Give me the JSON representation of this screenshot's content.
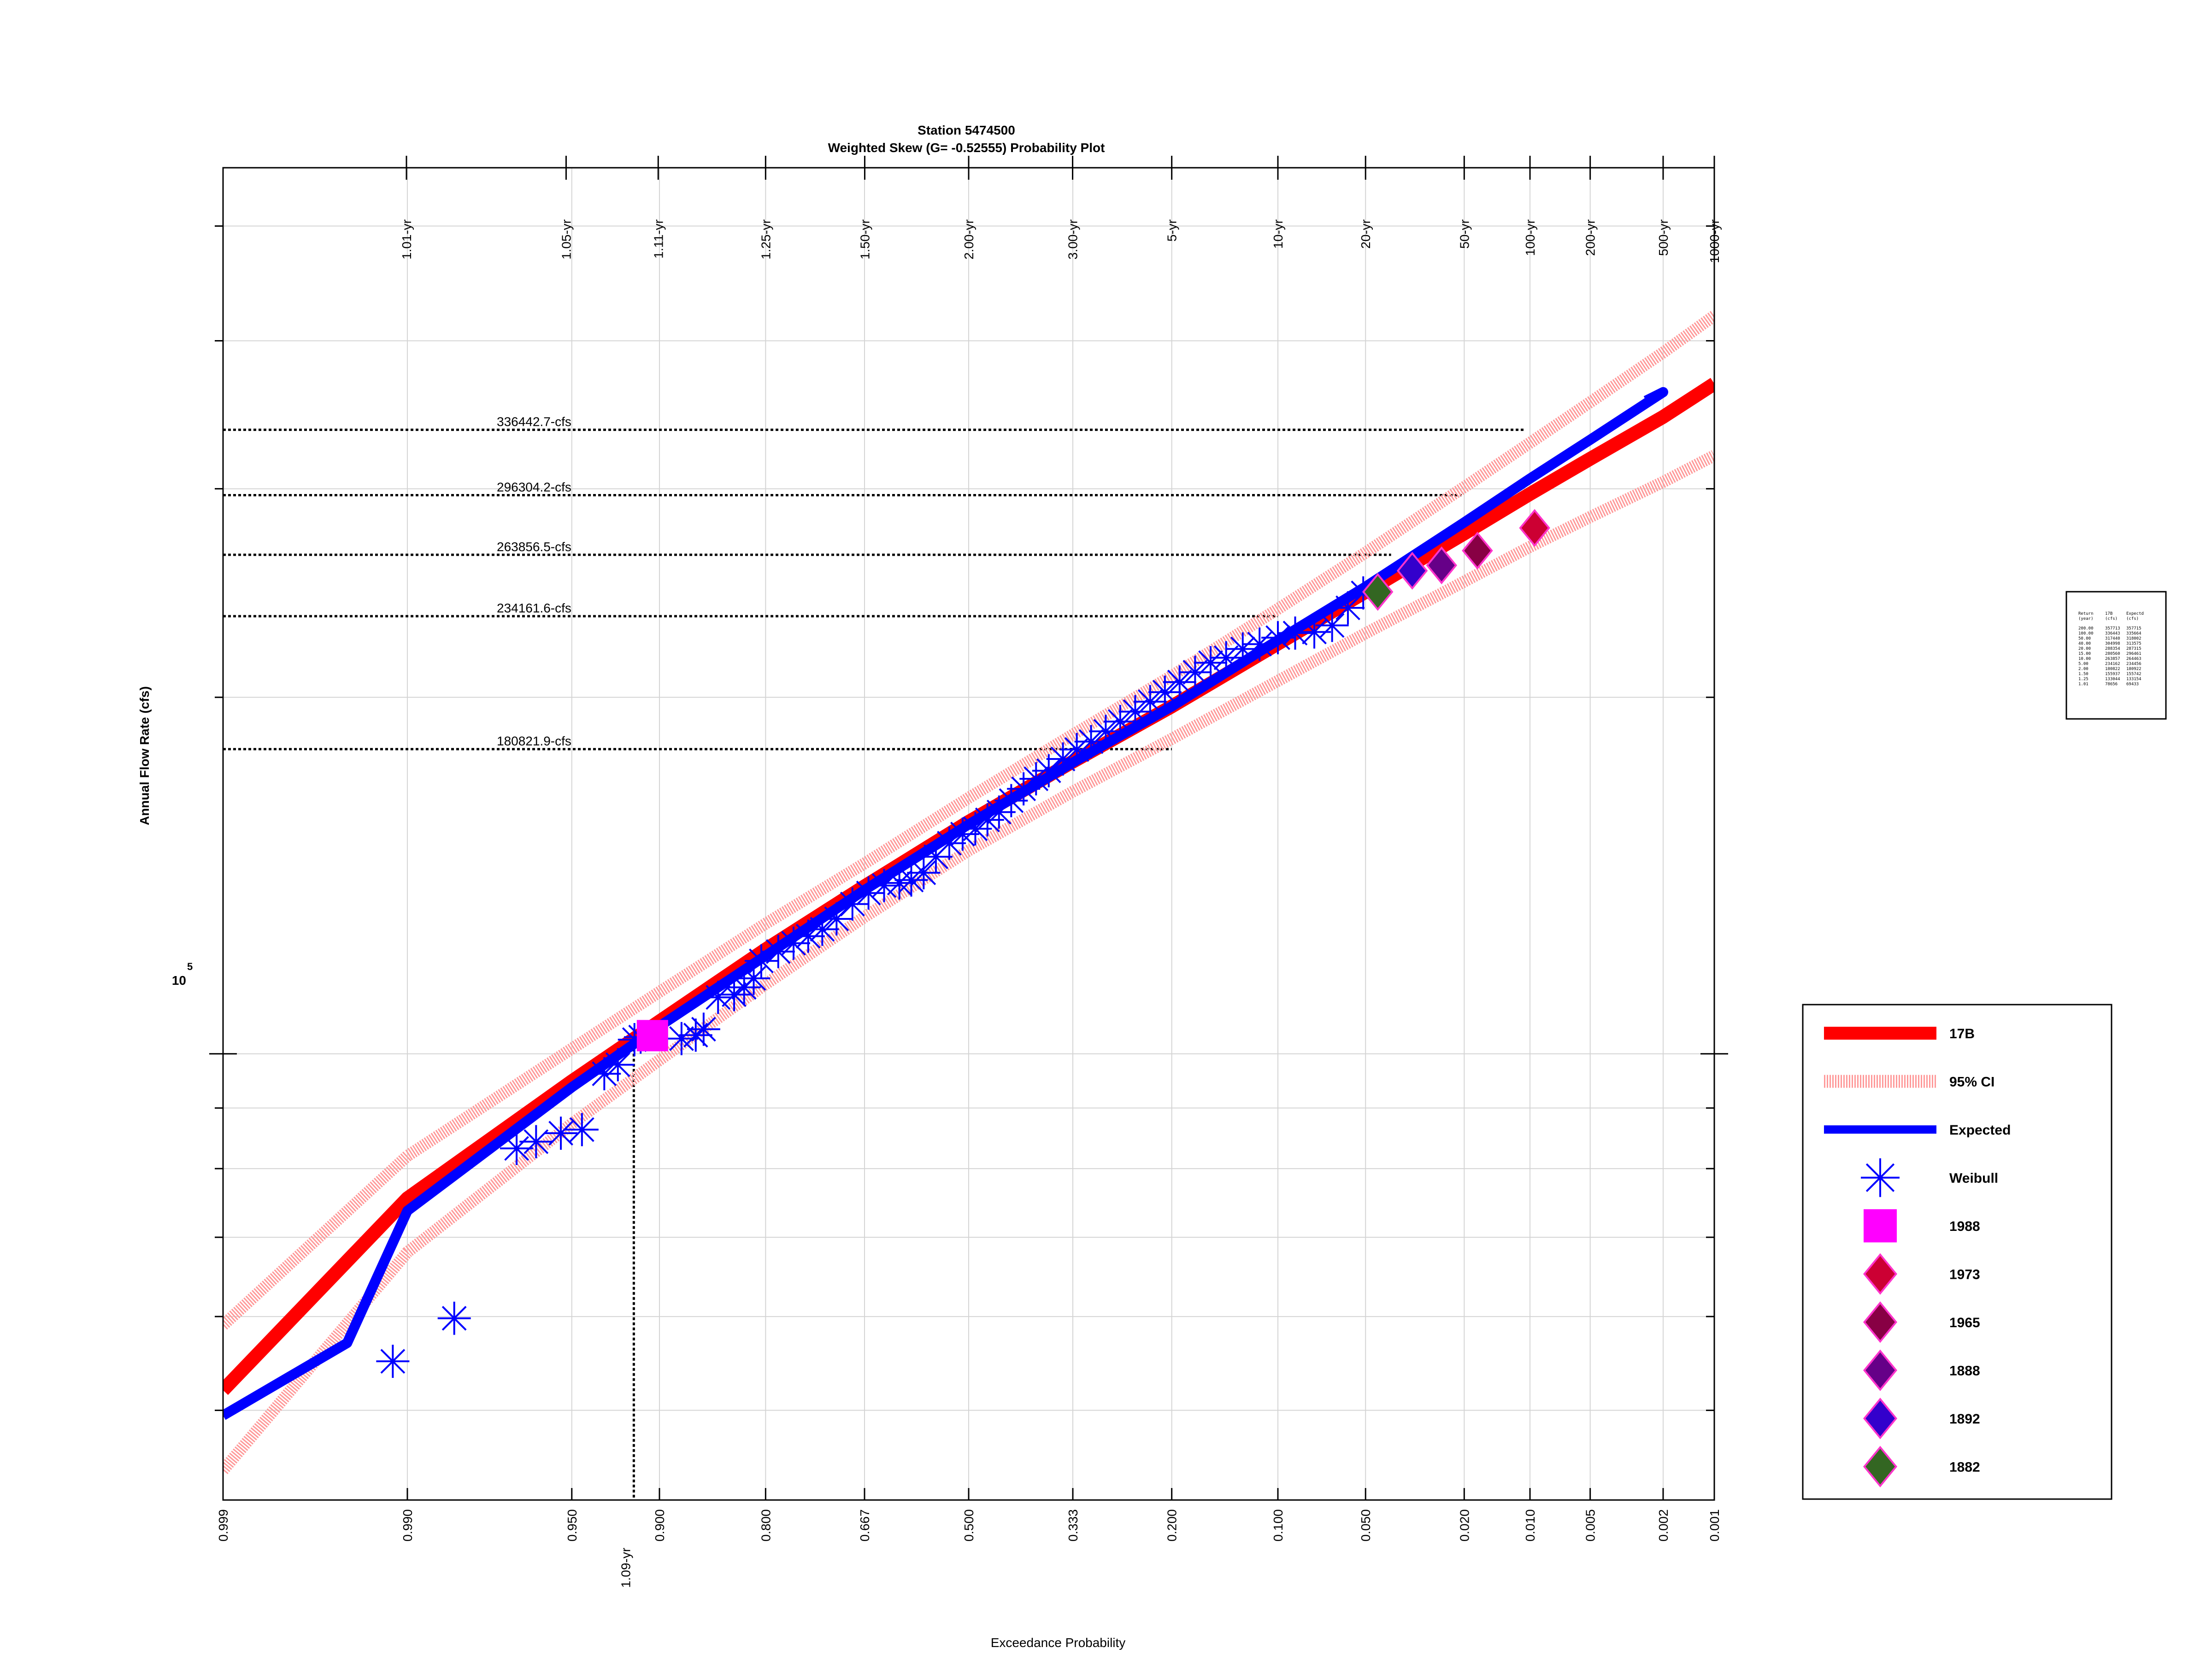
{
  "chart_data": {
    "type": "scatter",
    "title_line1": "Station 5474500",
    "title_line2": "Weighted Skew (G= -0.52555) Probability Plot",
    "xlabel": "Exceedance Probability",
    "ylabel": "Annual Flow Rate (cfs)",
    "x_scale": "normal-probability",
    "y_scale": "log",
    "xlim": [
      0.999,
      0.001
    ],
    "ylim": [
      42000,
      560000
    ],
    "grid": true,
    "y_major_label": {
      "base": "10",
      "exp": "5"
    },
    "x_ticks": [
      {
        "p": 0.999,
        "label": "0.999"
      },
      {
        "p": 0.99,
        "label": "0.990"
      },
      {
        "p": 0.95,
        "label": "0.950"
      },
      {
        "p": 0.9,
        "label": "0.900"
      },
      {
        "p": 0.8,
        "label": "0.800"
      },
      {
        "p": 0.667,
        "label": "0.667"
      },
      {
        "p": 0.5,
        "label": "0.500"
      },
      {
        "p": 0.333,
        "label": "0.333"
      },
      {
        "p": 0.2,
        "label": "0.200"
      },
      {
        "p": 0.1,
        "label": "0.100"
      },
      {
        "p": 0.05,
        "label": "0.050"
      },
      {
        "p": 0.02,
        "label": "0.020"
      },
      {
        "p": 0.01,
        "label": "0.010"
      },
      {
        "p": 0.005,
        "label": "0.005"
      },
      {
        "p": 0.002,
        "label": "0.002"
      },
      {
        "p": 0.001,
        "label": "0.001"
      }
    ],
    "return_period_ticks": [
      {
        "p": 0.990099,
        "label": "1.01-yr"
      },
      {
        "p": 0.952381,
        "label": "1.05-yr"
      },
      {
        "p": 0.9009,
        "label": "1.11-yr"
      },
      {
        "p": 0.8,
        "label": "1.25-yr"
      },
      {
        "p": 0.6667,
        "label": "1.50-yr"
      },
      {
        "p": 0.5,
        "label": "2.00-yr"
      },
      {
        "p": 0.3333,
        "label": "3.00-yr"
      },
      {
        "p": 0.2,
        "label": "5-yr"
      },
      {
        "p": 0.1,
        "label": "10-yr"
      },
      {
        "p": 0.05,
        "label": "20-yr"
      },
      {
        "p": 0.02,
        "label": "50-yr"
      },
      {
        "p": 0.01,
        "label": "100-yr"
      },
      {
        "p": 0.005,
        "label": "200-yr"
      },
      {
        "p": 0.002,
        "label": "500-yr"
      },
      {
        "p": 0.001,
        "label": "1000-yr"
      }
    ],
    "flow_annotations": [
      {
        "q": 336442.7,
        "p_end": 0.0105,
        "label": "336442.7-cfs"
      },
      {
        "q": 296304.2,
        "p_end": 0.0205,
        "label": "296304.2-cfs"
      },
      {
        "q": 263856.5,
        "p_end": 0.04,
        "label": "263856.5-cfs"
      },
      {
        "q": 234161.6,
        "p_end": 0.1,
        "label": "234161.6-cfs"
      },
      {
        "q": 180821.9,
        "p_end": 0.2,
        "label": "180821.9-cfs"
      }
    ],
    "vertical_annotation": {
      "p": 0.9174,
      "q": 101000,
      "label": "1.09-yr"
    },
    "series": [
      {
        "name": "17B",
        "color": "#ff0000",
        "kind": "line",
        "points": [
          [
            0.999,
            52000
          ],
          [
            0.99,
            75500
          ],
          [
            0.95,
            94800
          ],
          [
            0.9,
            106500
          ],
          [
            0.8,
            122500
          ],
          [
            0.667,
            138500
          ],
          [
            0.5,
            157000
          ],
          [
            0.333,
            176500
          ],
          [
            0.2,
            196500
          ],
          [
            0.1,
            222000
          ],
          [
            0.05,
            245500
          ],
          [
            0.02,
            275000
          ],
          [
            0.01,
            297000
          ],
          [
            0.005,
            318000
          ],
          [
            0.002,
            345000
          ],
          [
            0.001,
            368000
          ]
        ]
      },
      {
        "name": "95% CI",
        "color": "#ff9999",
        "kind": "band",
        "role": "upper",
        "points": [
          [
            0.999,
            59000
          ],
          [
            0.99,
            82000
          ],
          [
            0.95,
            101000
          ],
          [
            0.9,
            112800
          ],
          [
            0.8,
            128800
          ],
          [
            0.667,
            144800
          ],
          [
            0.5,
            164500
          ],
          [
            0.333,
            186000
          ],
          [
            0.2,
            208500
          ],
          [
            0.1,
            237500
          ],
          [
            0.05,
            265000
          ],
          [
            0.02,
            301000
          ],
          [
            0.01,
            328000
          ],
          [
            0.005,
            355000
          ],
          [
            0.002,
            391000
          ],
          [
            0.001,
            420000
          ]
        ]
      },
      {
        "name": "",
        "color": "#ff9999",
        "kind": "band",
        "role": "lower",
        "points": [
          [
            0.999,
            44500
          ],
          [
            0.99,
            68000
          ],
          [
            0.95,
            87300
          ],
          [
            0.9,
            98800
          ],
          [
            0.8,
            114500
          ],
          [
            0.667,
            130500
          ],
          [
            0.5,
            148500
          ],
          [
            0.333,
            166500
          ],
          [
            0.2,
            184500
          ],
          [
            0.1,
            206500
          ],
          [
            0.05,
            226500
          ],
          [
            0.02,
            250500
          ],
          [
            0.01,
            268000
          ],
          [
            0.005,
            284000
          ],
          [
            0.002,
            304000
          ],
          [
            0.001,
            320000
          ]
        ]
      },
      {
        "name": "Expected",
        "color": "#0000ff",
        "kind": "line",
        "points": [
          [
            0.999,
            49500
          ],
          [
            0.995,
            57000
          ],
          [
            0.99,
            73700
          ],
          [
            0.95,
            93700
          ],
          [
            0.9,
            105500
          ],
          [
            0.8,
            121000
          ],
          [
            0.667,
            137500
          ],
          [
            0.5,
            156200
          ],
          [
            0.333,
            176200
          ],
          [
            0.2,
            196500
          ],
          [
            0.1,
            223500
          ],
          [
            0.05,
            248000
          ],
          [
            0.02,
            281000
          ],
          [
            0.01,
            306000
          ],
          [
            0.005,
            330000
          ],
          [
            0.002,
            362000
          ],
          [
            0.0025,
            356000
          ]
        ]
      },
      {
        "name": "Weibull",
        "color": "#0000ff",
        "kind": "markers",
        "marker": "asterisk",
        "points": [
          [
            0.9915,
            55000
          ],
          [
            0.9835,
            59800
          ],
          [
            0.9695,
            83200
          ],
          [
            0.9635,
            84300
          ],
          [
            0.9545,
            85700
          ],
          [
            0.9455,
            86300
          ],
          [
            0.9345,
            96200
          ],
          [
            0.927,
            97900
          ],
          [
            0.917,
            102800
          ],
          [
            0.913,
            103300
          ],
          [
            0.883,
            103000
          ],
          [
            0.871,
            103700
          ],
          [
            0.864,
            104900
          ],
          [
            0.8505,
            111600
          ],
          [
            0.8345,
            112200
          ],
          [
            0.824,
            113800
          ],
          [
            0.8135,
            115800
          ],
          [
            0.805,
            119800
          ],
          [
            0.785,
            122000
          ],
          [
            0.766,
            124000
          ],
          [
            0.747,
            125700
          ],
          [
            0.728,
            127400
          ],
          [
            0.708,
            130000
          ],
          [
            0.685,
            133800
          ],
          [
            0.661,
            136700
          ],
          [
            0.637,
            138700
          ],
          [
            0.613,
            139400
          ],
          [
            0.594,
            140200
          ],
          [
            0.574,
            142200
          ],
          [
            0.554,
            146700
          ],
          [
            0.532,
            150600
          ],
          [
            0.51,
            153300
          ],
          [
            0.489,
            154900
          ],
          [
            0.469,
            157600
          ],
          [
            0.45,
            160000
          ],
          [
            0.43,
            163600
          ],
          [
            0.41,
            167400
          ],
          [
            0.39,
            170700
          ],
          [
            0.37,
            173400
          ],
          [
            0.348,
            177400
          ],
          [
            0.327,
            180700
          ],
          [
            0.306,
            183500
          ],
          [
            0.285,
            187200
          ],
          [
            0.265,
            190800
          ],
          [
            0.245,
            194500
          ],
          [
            0.226,
            198300
          ],
          [
            0.208,
            202000
          ],
          [
            0.191,
            206000
          ],
          [
            0.174,
            210000
          ],
          [
            0.158,
            213900
          ],
          [
            0.143,
            216000
          ],
          [
            0.128,
            219700
          ],
          [
            0.114,
            221800
          ],
          [
            0.1,
            224600
          ],
          [
            0.088,
            226600
          ],
          [
            0.076,
            227100
          ],
          [
            0.066,
            230000
          ],
          [
            0.058,
            238000
          ],
          [
            0.051,
            245000
          ]
        ]
      },
      {
        "name": "1988",
        "color": "#ff00ff",
        "kind": "markers",
        "marker": "square",
        "points": [
          [
            0.905,
            103600
          ]
        ]
      },
      {
        "name": "1973",
        "color": "#cc0033",
        "stroke": "#ff33cc",
        "kind": "markers",
        "marker": "diamond",
        "points": [
          [
            0.0095,
            278000
          ]
        ]
      },
      {
        "name": "1965",
        "color": "#880044",
        "stroke": "#ff33cc",
        "kind": "markers",
        "marker": "diamond",
        "points": [
          [
            0.0175,
            266000
          ]
        ]
      },
      {
        "name": "1888",
        "color": "#660088",
        "stroke": "#ff33cc",
        "kind": "markers",
        "marker": "diamond",
        "points": [
          [
            0.025,
            258500
          ]
        ]
      },
      {
        "name": "1892",
        "color": "#3300cc",
        "stroke": "#ff33cc",
        "kind": "markers",
        "marker": "diamond",
        "points": [
          [
            0.033,
            255800
          ]
        ]
      },
      {
        "name": "1882",
        "color": "#336622",
        "stroke": "#ff33cc",
        "kind": "markers",
        "marker": "diamond",
        "points": [
          [
            0.045,
            245500
          ]
        ]
      }
    ],
    "legend_placement": "right",
    "legend": [
      {
        "label": "17B",
        "kind": "line",
        "color": "#ff0000"
      },
      {
        "label": "95% CI",
        "kind": "band",
        "color": "#ff9999"
      },
      {
        "label": "Expected",
        "kind": "line",
        "color": "#0000ff"
      },
      {
        "label": "Weibull",
        "kind": "asterisk",
        "color": "#0000ff"
      },
      {
        "label": "1988",
        "kind": "square",
        "color": "#ff00ff"
      },
      {
        "label": "1973",
        "kind": "diamond",
        "color": "#cc0033"
      },
      {
        "label": "1965",
        "kind": "diamond",
        "color": "#880044"
      },
      {
        "label": "1888",
        "kind": "diamond",
        "color": "#660088"
      },
      {
        "label": "1892",
        "kind": "diamond",
        "color": "#3300cc"
      },
      {
        "label": "1882",
        "kind": "diamond",
        "color": "#336622"
      }
    ],
    "table": {
      "headers": [
        "Return",
        "17B",
        "Expectd"
      ],
      "subheaders": [
        "(year)",
        "(cfs)",
        "(cfs)"
      ],
      "rows": [
        [
          "200.00",
          "357713",
          "357715"
        ],
        [
          "100.00",
          "336443",
          "335664"
        ],
        [
          "50.00",
          "317440",
          "318002"
        ],
        [
          "40.00",
          "304998",
          "313575"
        ],
        [
          "20.00",
          "288354",
          "287315"
        ],
        [
          "15.00",
          "280560",
          "296461"
        ],
        [
          "10.00",
          "263857",
          "264463"
        ],
        [
          "5.00",
          "234162",
          "234456"
        ],
        [
          "2.00",
          "180822",
          "180922"
        ],
        [
          "1.50",
          "155937",
          "155742"
        ],
        [
          "1.25",
          "133044",
          "133154"
        ],
        [
          "1.01",
          "78656",
          "69433"
        ]
      ]
    }
  }
}
